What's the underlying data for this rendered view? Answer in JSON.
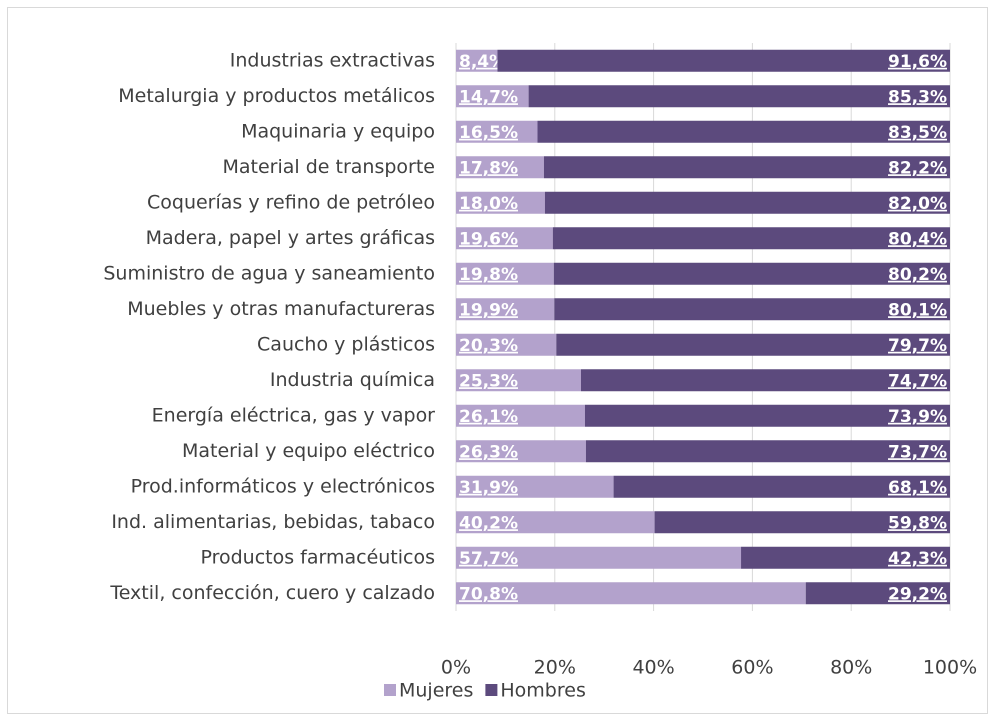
{
  "chart_data": {
    "type": "stacked-bar-horizontal",
    "categories": [
      "Industrias extractivas",
      "Metalurgia y productos metálicos",
      "Maquinaria y equipo",
      "Material de transporte",
      "Coquerías y refino de petróleo",
      "Madera, papel y artes gráficas",
      "Suministro de agua y saneamiento",
      "Muebles y otras manufactureras",
      "Caucho y plásticos",
      "Industria química",
      "Energía eléctrica, gas y vapor ",
      "Material y equipo eléctrico",
      "Prod.informáticos y electrónicos",
      "Ind. alimentarias, bebidas, tabaco",
      "Productos farmacéuticos",
      "Textil, confección, cuero y calzado"
    ],
    "series": [
      {
        "name": "Mujeres",
        "color": "#b3a2cc",
        "values": [
          8.4,
          14.7,
          16.5,
          17.8,
          18.0,
          19.6,
          19.8,
          19.9,
          20.3,
          25.3,
          26.1,
          26.3,
          31.9,
          40.2,
          57.7,
          70.8
        ],
        "value_labels": [
          "8,4%",
          "14,7%",
          "16,5%",
          "17,8%",
          "18,0%",
          "19,6%",
          "19,8%",
          "19,9%",
          "20,3%",
          "25,3%",
          "26,1%",
          "26,3%",
          "31,9%",
          "40,2%",
          "57,7%",
          "70,8%"
        ]
      },
      {
        "name": "Hombres",
        "color": "#5c4a7d",
        "values": [
          91.6,
          85.3,
          83.5,
          82.2,
          82.0,
          80.4,
          80.2,
          80.1,
          79.7,
          74.7,
          73.9,
          73.7,
          68.1,
          59.8,
          42.3,
          29.2
        ],
        "value_labels": [
          "91,6%",
          "85,3%",
          "83,5%",
          "82,2%",
          "82,0%",
          "80,4%",
          "80,2%",
          "80,1%",
          "79,7%",
          "74,7%",
          "73,9%",
          "73,7%",
          "68,1%",
          "59,8%",
          "42,3%",
          "29,2%"
        ]
      }
    ],
    "xlim": [
      0,
      100
    ],
    "xticks": [
      {
        "value": 0,
        "label": "0%"
      },
      {
        "value": 20,
        "label": "20%"
      },
      {
        "value": 40,
        "label": "40%"
      },
      {
        "value": 60,
        "label": "60%"
      },
      {
        "value": 80,
        "label": "80%"
      },
      {
        "value": 100,
        "label": "100%"
      }
    ],
    "grid": true,
    "legend": "bottom"
  }
}
